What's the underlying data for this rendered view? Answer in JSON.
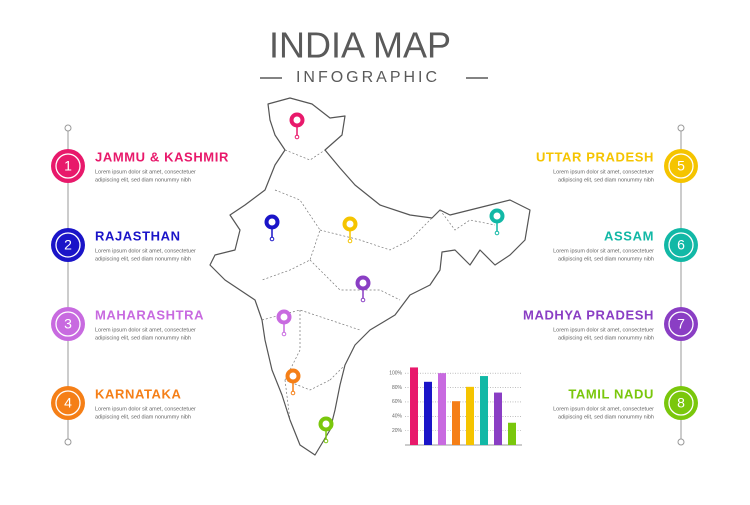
{
  "header": {
    "title": "INDIA MAP",
    "subtitle": "INFOGRAPHIC"
  },
  "items": [
    {
      "number": 1,
      "name": "JAMMU & KASHMIR",
      "color": "#e8196b",
      "desc": [
        "Lorem ipsum dolor sit amet, consectetuer",
        "adipiscing elit, sed diam nonummy nibh"
      ]
    },
    {
      "number": 2,
      "name": "RAJASTHAN",
      "color": "#1a14c8",
      "desc": [
        "Lorem ipsum dolor sit amet, consectetuer",
        "adipiscing elit, sed diam nonummy nibh"
      ]
    },
    {
      "number": 3,
      "name": "MAHARASHTRA",
      "color": "#c86ae0",
      "desc": [
        "Lorem ipsum dolor sit amet, consectetuer",
        "adipiscing elit, sed diam nonummy nibh"
      ]
    },
    {
      "number": 4,
      "name": "KARNATAKA",
      "color": "#f57f17",
      "desc": [
        "Lorem ipsum dolor sit amet, consectetuer",
        "adipiscing elit, sed diam nonummy nibh"
      ]
    },
    {
      "number": 5,
      "name": "UTTAR PRADESH",
      "color": "#f5c400",
      "desc": [
        "Lorem ipsum dolor sit amet, consectetuer",
        "adipiscing elit, sed diam nonummy nibh"
      ]
    },
    {
      "number": 6,
      "name": "ASSAM",
      "color": "#12b8a6",
      "desc": [
        "Lorem ipsum dolor sit amet, consectetuer",
        "adipiscing elit, sed diam nonummy nibh"
      ]
    },
    {
      "number": 7,
      "name": "MADHYA PRADESH",
      "color": "#8a3ec4",
      "desc": [
        "Lorem ipsum dolor sit amet, consectetuer",
        "adipiscing elit, sed diam nonummy nibh"
      ]
    },
    {
      "number": 8,
      "name": "TAMIL NADU",
      "color": "#7ac70c",
      "desc": [
        "Lorem ipsum dolor sit amet, consectetuer",
        "adipiscing elit, sed diam nonummy nibh"
      ]
    }
  ],
  "chart_data": {
    "type": "bar",
    "values": [
      108,
      88,
      100,
      61,
      81,
      96,
      73,
      31
    ],
    "colors": [
      "#e8196b",
      "#1a14c8",
      "#c86ae0",
      "#f57f17",
      "#f5c400",
      "#12b8a6",
      "#8a3ec4",
      "#7ac70c"
    ],
    "ylim": [
      0,
      110
    ],
    "yticks": [
      {
        "value": 20,
        "label": "20%"
      },
      {
        "value": 40,
        "label": "40%"
      },
      {
        "value": 60,
        "label": "60%"
      },
      {
        "value": 80,
        "label": "80%"
      },
      {
        "value": 100,
        "label": "100%"
      }
    ],
    "grid": true
  }
}
